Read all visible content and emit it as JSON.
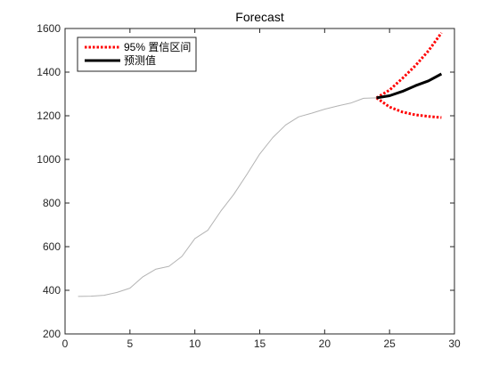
{
  "chart_data": {
    "type": "line",
    "title": "Forecast",
    "xlabel": "",
    "ylabel": "",
    "xlim": [
      0,
      30
    ],
    "ylim": [
      200,
      1600
    ],
    "xticks": [
      0,
      5,
      10,
      15,
      20,
      25,
      30
    ],
    "yticks": [
      200,
      400,
      600,
      800,
      1000,
      1200,
      1400,
      1600
    ],
    "grid": false,
    "legend_position": "top-left",
    "series": [
      {
        "role": "history",
        "color": "#b3b3b3",
        "style": "solid",
        "x": [
          1,
          2,
          3,
          4,
          5,
          6,
          7,
          8,
          9,
          10,
          11,
          12,
          13,
          14,
          15,
          16,
          17,
          18,
          19,
          20,
          21,
          22,
          23,
          24
        ],
        "y": [
          372,
          373,
          377,
          390,
          410,
          462,
          497,
          510,
          555,
          637,
          675,
          763,
          840,
          930,
          1025,
          1100,
          1158,
          1195,
          1212,
          1230,
          1245,
          1258,
          1280,
          1282
        ]
      },
      {
        "name": "95% 置信区间",
        "role": "ci_upper",
        "color": "#ff0000",
        "style": "dotted",
        "x": [
          24,
          25,
          26,
          27,
          28,
          29
        ],
        "y": [
          1282,
          1318,
          1372,
          1430,
          1498,
          1580
        ]
      },
      {
        "role": "ci_lower",
        "color": "#ff0000",
        "style": "dotted",
        "x": [
          24,
          25,
          26,
          27,
          28,
          29
        ],
        "y": [
          1282,
          1240,
          1217,
          1204,
          1197,
          1192
        ]
      },
      {
        "name": "预测值",
        "role": "forecast",
        "color": "#000000",
        "style": "solid",
        "x": [
          24,
          25,
          26,
          27,
          28,
          29
        ],
        "y": [
          1282,
          1292,
          1312,
          1338,
          1360,
          1392
        ]
      }
    ]
  }
}
